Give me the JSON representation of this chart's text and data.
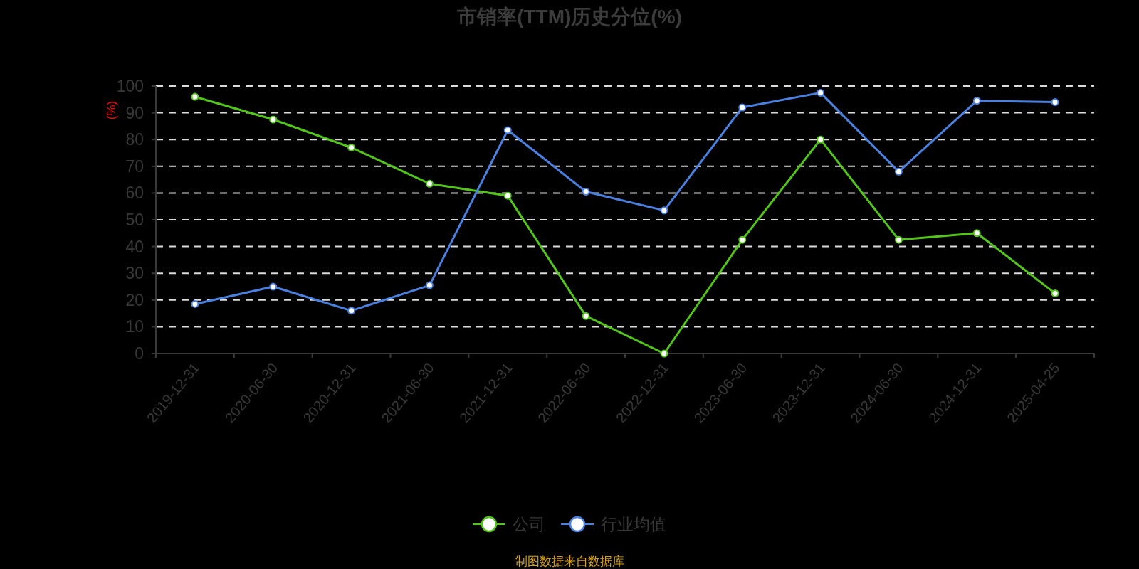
{
  "chart_data": {
    "type": "line",
    "title": "市销率(TTM)历史分位(%)",
    "ylabel": "(%)",
    "categories": [
      "2019-12-31",
      "2020-06-30",
      "2020-12-31",
      "2021-06-30",
      "2021-12-31",
      "2022-06-30",
      "2022-12-31",
      "2023-06-30",
      "2023-12-31",
      "2024-06-30",
      "2024-12-31",
      "2025-04-25"
    ],
    "series": [
      {
        "name": "公司",
        "color": "#52c41a",
        "values": [
          96,
          87.5,
          77,
          63.5,
          59,
          14,
          0,
          42.5,
          80,
          42.5,
          45,
          22.5
        ]
      },
      {
        "name": "行业均值",
        "color": "#4a80e0",
        "values": [
          18.5,
          25,
          16,
          25.5,
          83.5,
          60.5,
          53.5,
          92,
          97.5,
          68,
          94.5,
          94
        ]
      }
    ],
    "ylim": [
      0,
      100
    ],
    "yticks": [
      0,
      10,
      20,
      30,
      40,
      50,
      60,
      70,
      80,
      90,
      100
    ],
    "grid": "y",
    "legend": "bottom",
    "marker": "circle",
    "line_style": "solid",
    "annotations": [
      "制图数据来自数据库"
    ]
  }
}
